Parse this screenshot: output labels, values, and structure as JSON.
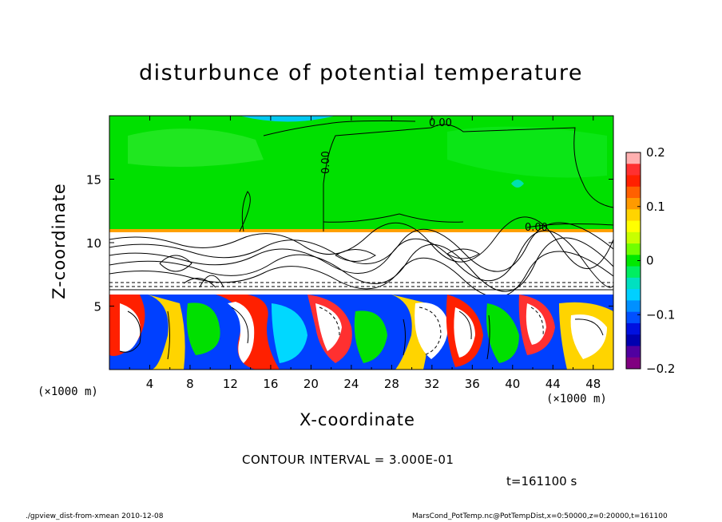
{
  "chart_data": {
    "type": "heatmap",
    "title": "disturbunce of potential temperature",
    "xlabel": "X-coordinate",
    "ylabel": "Z-coordinate",
    "x_unit_left": "(×1000 m)",
    "x_unit_right": "(×1000 m)",
    "xlim": [
      0,
      50
    ],
    "ylim": [
      0,
      20
    ],
    "x_ticks": [
      4,
      8,
      12,
      16,
      20,
      24,
      28,
      32,
      36,
      40,
      44,
      48
    ],
    "y_ticks": [
      5,
      10,
      15
    ],
    "colorbar": {
      "range": [
        -0.2,
        0.2
      ],
      "tick_labels": [
        "0.2",
        "0.1",
        "0",
        "−0.1",
        "−0.2"
      ],
      "tick_values": [
        0.2,
        0.1,
        0,
        -0.1,
        -0.2
      ],
      "colors": [
        "#ffb0b0",
        "#ff3030",
        "#ff2000",
        "#ff6000",
        "#ff9a00",
        "#ffd400",
        "#ffff00",
        "#c8ff00",
        "#70ff00",
        "#00e800",
        "#00ee60",
        "#00e0c0",
        "#00d0ff",
        "#0090ff",
        "#0050ff",
        "#0010e0",
        "#0000b0",
        "#5000a0",
        "#800080"
      ]
    },
    "contour_labels": [
      "0.00",
      "0.00",
      "0.00"
    ],
    "contour_interval": "CONTOUR INTERVAL = 3.000E-01",
    "time": "t=161100 s"
  },
  "footer": {
    "left": "./gpview_dist-from-xmean  2010-12-08",
    "right": "MarsCond_PotTemp.nc@PotTempDist,x=0:50000,z=0:20000,t=161100"
  }
}
